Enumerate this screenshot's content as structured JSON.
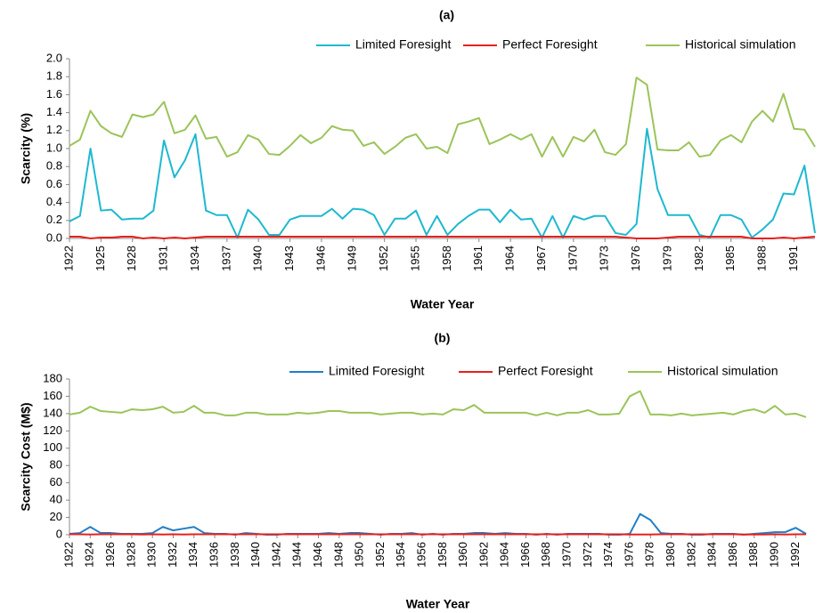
{
  "chart_data": [
    {
      "type": "line",
      "title": "(a)",
      "x_label": "Water Year",
      "y_label": "Scarcity (%)",
      "x": [
        1922,
        1923,
        1924,
        1925,
        1926,
        1927,
        1928,
        1929,
        1930,
        1931,
        1932,
        1933,
        1934,
        1935,
        1936,
        1937,
        1938,
        1939,
        1940,
        1941,
        1942,
        1943,
        1944,
        1945,
        1946,
        1947,
        1948,
        1949,
        1950,
        1951,
        1952,
        1953,
        1954,
        1955,
        1956,
        1957,
        1958,
        1959,
        1960,
        1961,
        1962,
        1963,
        1964,
        1965,
        1966,
        1967,
        1968,
        1969,
        1970,
        1971,
        1972,
        1973,
        1974,
        1975,
        1976,
        1977,
        1978,
        1979,
        1980,
        1981,
        1982,
        1983,
        1984,
        1985,
        1986,
        1987,
        1988,
        1989,
        1990,
        1991,
        1992,
        1993
      ],
      "xlim": [
        1922,
        1993
      ],
      "xticks": [
        1922,
        1925,
        1928,
        1931,
        1934,
        1937,
        1940,
        1943,
        1946,
        1949,
        1952,
        1955,
        1958,
        1961,
        1964,
        1967,
        1970,
        1973,
        1976,
        1979,
        1982,
        1985,
        1988,
        1991
      ],
      "ylim": [
        0,
        2
      ],
      "yticks": [
        {
          "value": 0,
          "label": "0.0"
        },
        0.2,
        0.4,
        0.6,
        0.8,
        {
          "value": 1,
          "label": "1.0"
        },
        1.2,
        1.4,
        1.6,
        1.8,
        {
          "value": 2,
          "label": "2.0"
        }
      ],
      "series": [
        {
          "name": "Limited Foresight",
          "color": "#1fb8d0",
          "values": [
            0.19,
            0.25,
            1.0,
            0.31,
            0.32,
            0.21,
            0.22,
            0.22,
            0.31,
            1.09,
            0.68,
            0.87,
            1.16,
            0.31,
            0.26,
            0.26,
            0.01,
            0.32,
            0.21,
            0.04,
            0.04,
            0.21,
            0.25,
            0.25,
            0.25,
            0.33,
            0.22,
            0.33,
            0.32,
            0.26,
            0.04,
            0.22,
            0.22,
            0.31,
            0.04,
            0.25,
            0.04,
            0.16,
            0.25,
            0.32,
            0.32,
            0.18,
            0.32,
            0.21,
            0.22,
            0.01,
            0.25,
            0.01,
            0.25,
            0.21,
            0.25,
            0.25,
            0.06,
            0.04,
            0.16,
            1.22,
            0.55,
            0.26,
            0.26,
            0.26,
            0.04,
            0.01,
            0.26,
            0.26,
            0.21,
            0.01,
            0.1,
            0.21,
            0.5,
            0.49,
            0.81,
            0.06
          ]
        },
        {
          "name": "Perfect Foresight",
          "color": "#e8201c",
          "values": [
            0.02,
            0.02,
            0,
            0.01,
            0.01,
            0.02,
            0.02,
            0,
            0.01,
            0,
            0.01,
            0,
            0.01,
            0.02,
            0.02,
            0.02,
            0.02,
            0.02,
            0.02,
            0.02,
            0.02,
            0.02,
            0.02,
            0.02,
            0.02,
            0.02,
            0.02,
            0.02,
            0.02,
            0.02,
            0.02,
            0.02,
            0.02,
            0.02,
            0.02,
            0.02,
            0.02,
            0.02,
            0.02,
            0.02,
            0.02,
            0.02,
            0.02,
            0.02,
            0.02,
            0.02,
            0.02,
            0.02,
            0.02,
            0.02,
            0.02,
            0.02,
            0.02,
            0.01,
            0,
            0,
            0,
            0.01,
            0.02,
            0.02,
            0.02,
            0.02,
            0.02,
            0.02,
            0.02,
            0,
            0,
            0,
            0.01,
            0,
            0.01,
            0.02
          ]
        },
        {
          "name": "Historical simulation",
          "color": "#9bc45a",
          "values": [
            1.03,
            1.1,
            1.42,
            1.25,
            1.17,
            1.13,
            1.38,
            1.35,
            1.38,
            1.52,
            1.17,
            1.21,
            1.37,
            1.11,
            1.13,
            0.91,
            0.96,
            1.15,
            1.1,
            0.94,
            0.93,
            1.03,
            1.15,
            1.06,
            1.12,
            1.25,
            1.21,
            1.2,
            1.03,
            1.07,
            0.94,
            1.02,
            1.12,
            1.16,
            1.0,
            1.02,
            0.95,
            1.27,
            1.3,
            1.34,
            1.05,
            1.1,
            1.16,
            1.1,
            1.16,
            0.91,
            1.13,
            0.91,
            1.13,
            1.08,
            1.21,
            0.96,
            0.93,
            1.05,
            1.79,
            1.71,
            0.99,
            0.98,
            0.98,
            1.07,
            0.91,
            0.93,
            1.09,
            1.15,
            1.07,
            1.3,
            1.42,
            1.3,
            1.61,
            1.22,
            1.21,
            1.02
          ]
        }
      ]
    },
    {
      "type": "line",
      "title": "(b)",
      "x_label": "Water Year",
      "y_label": "Scarcity Cost (M$)",
      "x": [
        1922,
        1923,
        1924,
        1925,
        1926,
        1927,
        1928,
        1929,
        1930,
        1931,
        1932,
        1933,
        1934,
        1935,
        1936,
        1937,
        1938,
        1939,
        1940,
        1941,
        1942,
        1943,
        1944,
        1945,
        1946,
        1947,
        1948,
        1949,
        1950,
        1951,
        1952,
        1953,
        1954,
        1955,
        1956,
        1957,
        1958,
        1959,
        1960,
        1961,
        1962,
        1963,
        1964,
        1965,
        1966,
        1967,
        1968,
        1969,
        1970,
        1971,
        1972,
        1973,
        1974,
        1975,
        1976,
        1977,
        1978,
        1979,
        1980,
        1981,
        1982,
        1983,
        1984,
        1985,
        1986,
        1987,
        1988,
        1989,
        1990,
        1991,
        1992,
        1993
      ],
      "xlim": [
        1922,
        1993
      ],
      "xticks": [
        1922,
        1924,
        1926,
        1928,
        1930,
        1932,
        1934,
        1936,
        1938,
        1940,
        1942,
        1944,
        1946,
        1948,
        1950,
        1952,
        1954,
        1956,
        1958,
        1960,
        1962,
        1964,
        1966,
        1968,
        1970,
        1972,
        1974,
        1976,
        1978,
        1980,
        1982,
        1984,
        1986,
        1988,
        1990,
        1992
      ],
      "ylim": [
        0,
        180
      ],
      "yticks": [
        0,
        20,
        40,
        60,
        80,
        100,
        120,
        140,
        160,
        180
      ],
      "series": [
        {
          "name": "Limited Foresight",
          "color": "#1f7fc8",
          "values": [
            1,
            2,
            9,
            2,
            2,
            1,
            1,
            1,
            2,
            9,
            5,
            7,
            9,
            2,
            1,
            1,
            0,
            2,
            1,
            0,
            0,
            1,
            1,
            1,
            1,
            2,
            1,
            2,
            2,
            1,
            0,
            1,
            1,
            2,
            0,
            1,
            0,
            1,
            1,
            2,
            2,
            1,
            2,
            1,
            1,
            0,
            1,
            0,
            1,
            1,
            1,
            1,
            0,
            0,
            1,
            24,
            17,
            2,
            1,
            1,
            0,
            0,
            1,
            1,
            1,
            0,
            1,
            2,
            3,
            3,
            8,
            1
          ]
        },
        {
          "name": "Perfect Foresight",
          "color": "#e8201c",
          "values": [
            0.5,
            0.5,
            0.3,
            0.5,
            0.5,
            0.5,
            0.5,
            0.3,
            0.5,
            0.3,
            0.5,
            0.3,
            0.5,
            0.5,
            0.5,
            0.5,
            0.5,
            0.5,
            0.5,
            0.5,
            0.5,
            0.5,
            0.5,
            0.5,
            0.5,
            0.5,
            0.5,
            0.5,
            0.5,
            0.5,
            0.5,
            0.5,
            0.5,
            0.5,
            0.5,
            0.5,
            0.5,
            0.5,
            0.5,
            0.5,
            0.5,
            0.5,
            0.5,
            0.5,
            0.5,
            0.5,
            0.5,
            0.5,
            0.5,
            0.5,
            0.5,
            0.5,
            0.5,
            0.5,
            0.3,
            0.3,
            0.3,
            0.5,
            0.5,
            0.5,
            0.5,
            0.5,
            0.5,
            0.5,
            0.5,
            0.3,
            0.3,
            0.3,
            0.5,
            0.3,
            0.5,
            0.5
          ]
        },
        {
          "name": "Historical simulation",
          "color": "#9bc45a",
          "values": [
            139,
            141,
            148,
            143,
            142,
            141,
            145,
            144,
            145,
            148,
            141,
            142,
            149,
            141,
            141,
            138,
            138,
            141,
            141,
            139,
            139,
            139,
            141,
            140,
            141,
            143,
            143,
            141,
            141,
            141,
            139,
            140,
            141,
            141,
            139,
            140,
            139,
            145,
            144,
            150,
            141,
            141,
            141,
            141,
            141,
            138,
            141,
            138,
            141,
            141,
            144,
            139,
            139,
            140,
            160,
            166,
            139,
            139,
            138,
            140,
            138,
            139,
            140,
            141,
            139,
            143,
            145,
            141,
            149,
            139,
            140,
            136
          ]
        }
      ]
    }
  ]
}
